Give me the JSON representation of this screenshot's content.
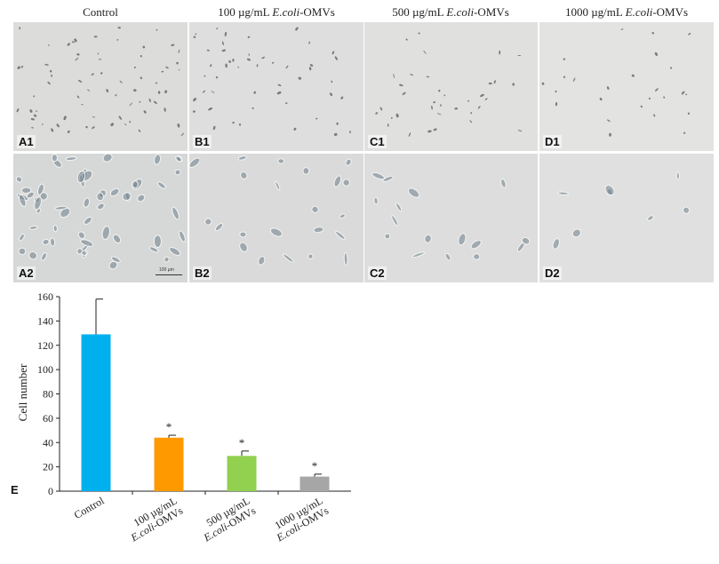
{
  "columns": [
    {
      "prefix": "Control",
      "italic": "",
      "suffix": ""
    },
    {
      "prefix": "100 µg/mL ",
      "italic": "E.coli",
      "suffix": "-OMVs"
    },
    {
      "prefix": "500 µg/mL ",
      "italic": "E.coli",
      "suffix": "-OMVs"
    },
    {
      "prefix": "1000 µg/mL ",
      "italic": "E.coli",
      "suffix": "-OMVs"
    }
  ],
  "panel_labels": {
    "row1": [
      "A1",
      "B1",
      "C1",
      "D1"
    ],
    "row2": [
      "A2",
      "B2",
      "C2",
      "D2"
    ]
  },
  "scale_bar_text": "100 µm",
  "panel_e_label": "E",
  "chart_data": {
    "type": "bar",
    "categories": [
      {
        "line1": "Control",
        "line2": ""
      },
      {
        "line1": "100 µg/mL",
        "line2": "E.coli-OMVs"
      },
      {
        "line1": "500 µg/mL",
        "line2": "E.coli-OMVs"
      },
      {
        "line1": "1000 µg/mL",
        "line2": "E.coli-OMVs"
      }
    ],
    "values": [
      129,
      44,
      29,
      12
    ],
    "errors": [
      29,
      2,
      4,
      2
    ],
    "significance": [
      "",
      "*",
      "*",
      "*"
    ],
    "colors": [
      "#00B0EE",
      "#FF9900",
      "#92D050",
      "#A6A6A6"
    ],
    "ylabel": "Cell number",
    "ylim": [
      0,
      160
    ],
    "yticks": [
      0,
      20,
      40,
      60,
      80,
      100,
      120,
      140,
      160
    ],
    "grid": false
  }
}
